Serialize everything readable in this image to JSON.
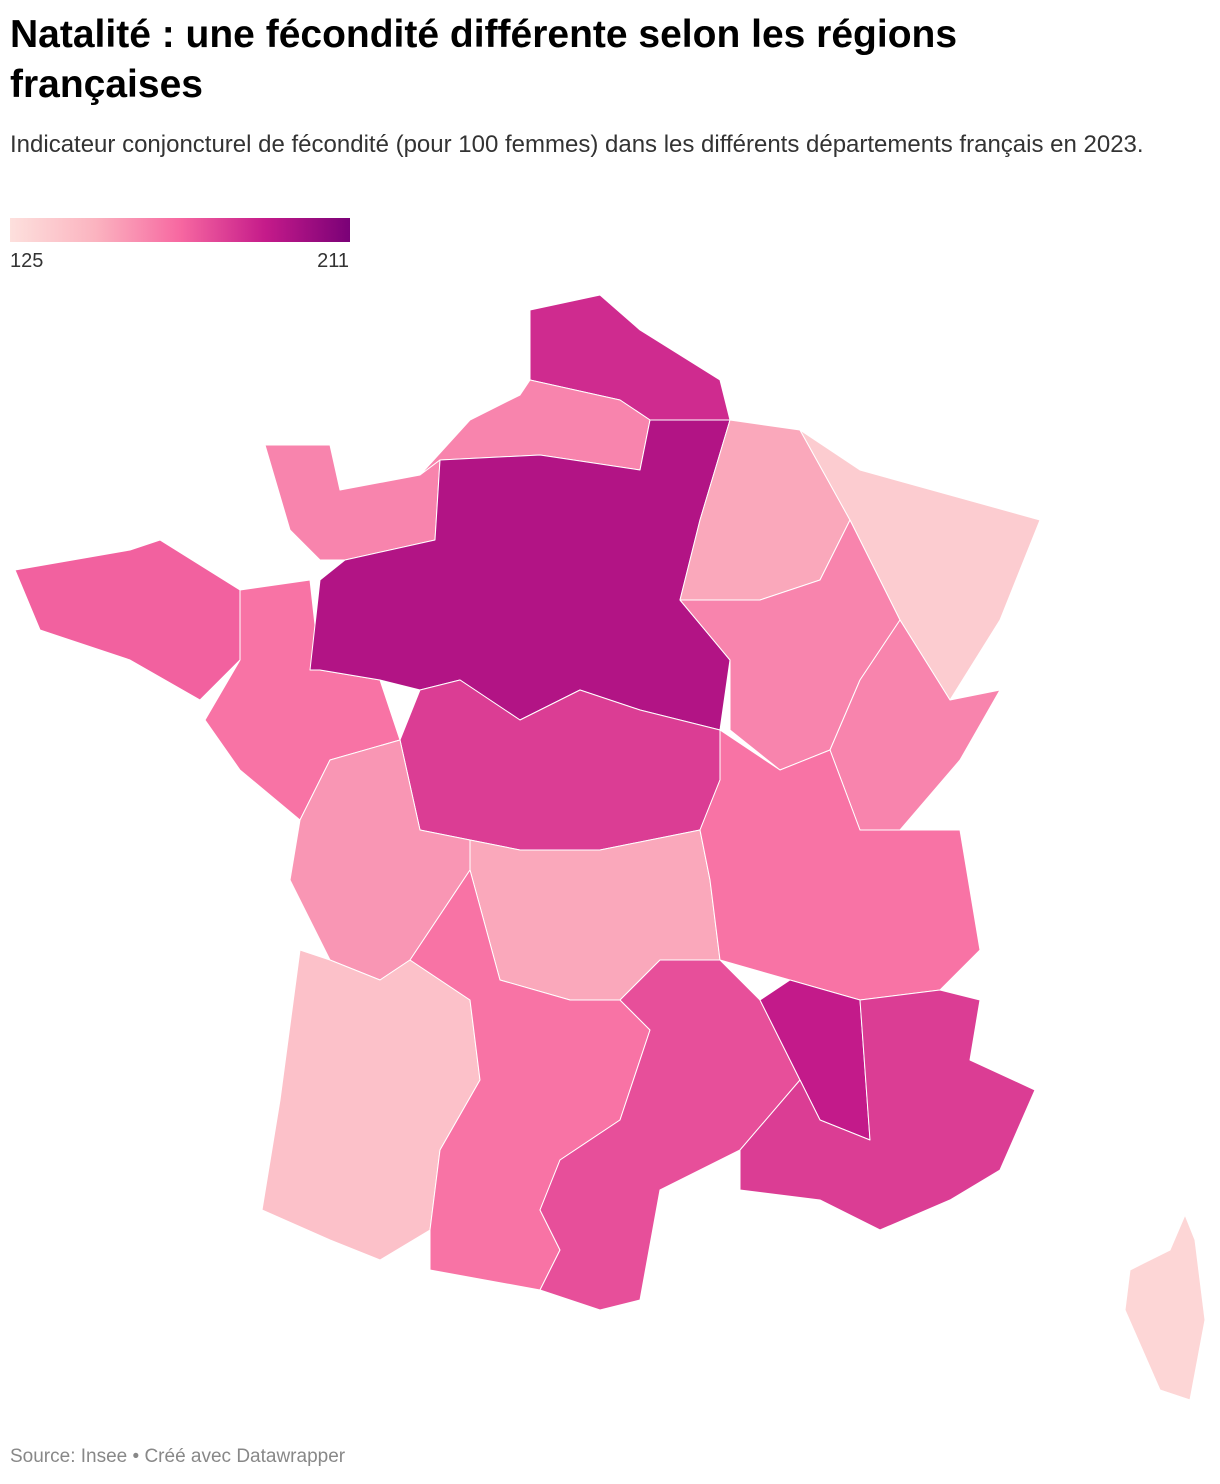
{
  "chart_data": {
    "type": "choropleth",
    "title": "Natalité : une fécondité différente selon les régions françaises",
    "subtitle": "Indicateur conjoncturel de fécondité (pour 100 femmes) dans les différents départements français en 2023.",
    "scale": {
      "min": 125,
      "max": 211,
      "colors": [
        "#fde0dd",
        "#fbb4c0",
        "#f768a1",
        "#c51b8a",
        "#7a0177"
      ]
    },
    "values": [
      185,
      160,
      160,
      170,
      165,
      205,
      195,
      150,
      135,
      160,
      160,
      180,
      155,
      150,
      165,
      140,
      165,
      175,
      190,
      180,
      130
    ],
    "source": "Source: Insee • Créé avec Datawrapper"
  }
}
